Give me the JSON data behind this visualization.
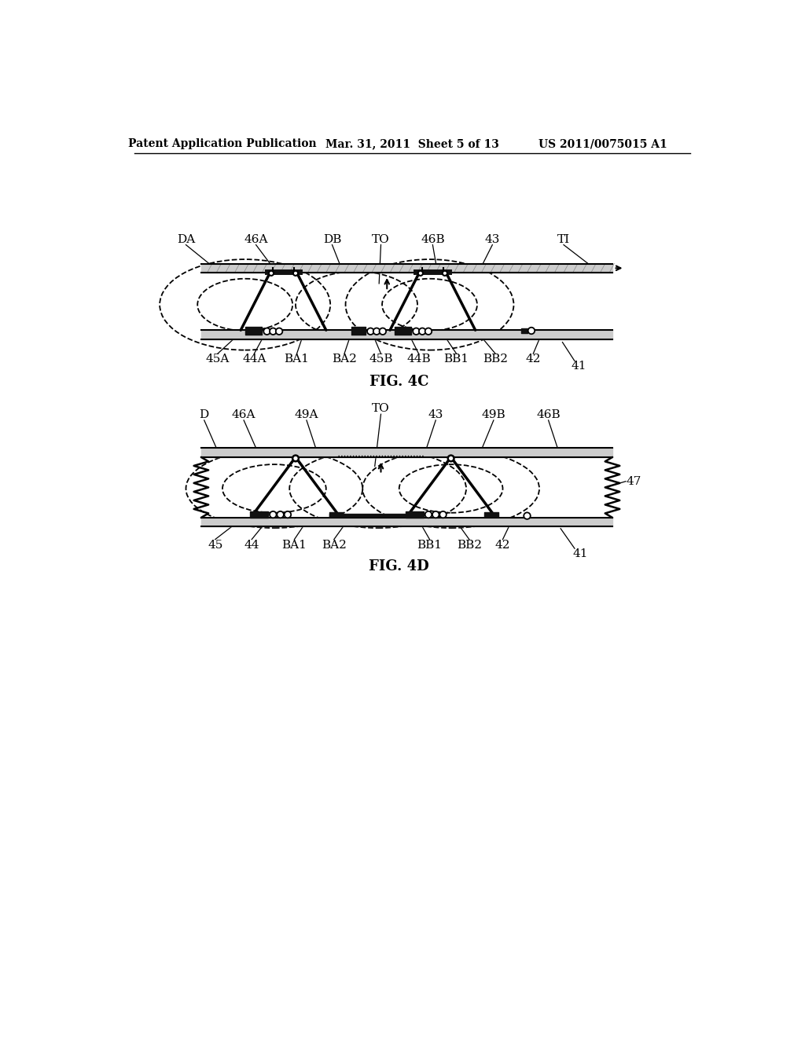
{
  "bg_color": "#ffffff",
  "header_left": "Patent Application Publication",
  "header_mid": "Mar. 31, 2011  Sheet 5 of 13",
  "header_right": "US 2011/0075015 A1",
  "fig4c_caption": "FIG. 4C",
  "fig4d_caption": "FIG. 4D",
  "line_color": "#000000",
  "plate_color": "#cccccc",
  "dark_color": "#111111"
}
